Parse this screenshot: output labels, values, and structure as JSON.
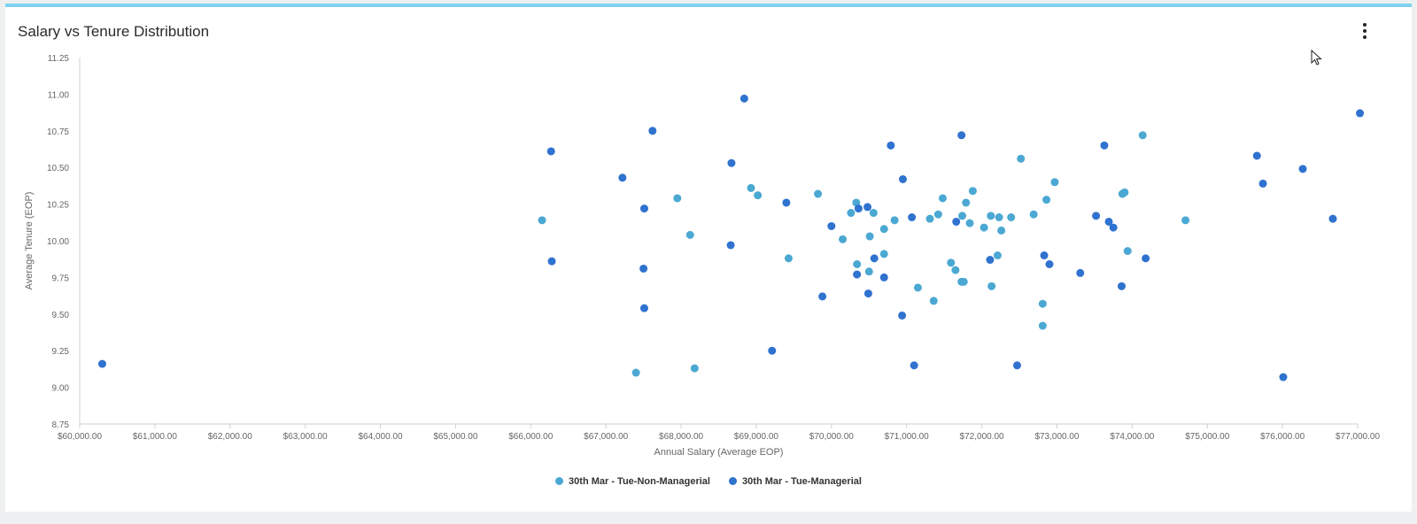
{
  "header": {
    "title": "Salary vs Tenure Distribution"
  },
  "colors": {
    "accent": "#7fd3ef",
    "series0": "#4ba8d3",
    "series1": "#2f72cf"
  },
  "chart_data": {
    "type": "scatter",
    "xlabel": "Annual Salary (Average EOP)",
    "ylabel": "Average Tenure (EOP)",
    "xlim": [
      60000,
      77000
    ],
    "ylim": [
      8.75,
      11.25
    ],
    "x_ticks": [
      "$60,000.00",
      "$61,000.00",
      "$62,000.00",
      "$63,000.00",
      "$64,000.00",
      "$65,000.00",
      "$66,000.00",
      "$67,000.00",
      "$68,000.00",
      "$69,000.00",
      "$70,000.00",
      "$71,000.00",
      "$72,000.00",
      "$73,000.00",
      "$74,000.00",
      "$75,000.00",
      "$76,000.00",
      "$77,000.00"
    ],
    "y_ticks": [
      "8.75",
      "9.00",
      "9.25",
      "9.50",
      "9.75",
      "10.00",
      "10.25",
      "10.50",
      "10.75",
      "11.00",
      "11.25"
    ],
    "grid": false,
    "legend": "bottom-center",
    "series": [
      {
        "name": "30th Mar - Tue-Non-Managerial",
        "color": "#4ba8d3",
        "points": [
          [
            66150,
            10.14
          ],
          [
            67400,
            9.1
          ],
          [
            67950,
            10.29
          ],
          [
            68120,
            10.04
          ],
          [
            68180,
            9.13
          ],
          [
            68930,
            10.36
          ],
          [
            69020,
            10.31
          ],
          [
            69430,
            9.88
          ],
          [
            69820,
            10.32
          ],
          [
            70150,
            10.01
          ],
          [
            70260,
            10.19
          ],
          [
            70330,
            10.26
          ],
          [
            70340,
            9.84
          ],
          [
            70500,
            9.79
          ],
          [
            70510,
            10.03
          ],
          [
            70560,
            10.19
          ],
          [
            70700,
            10.08
          ],
          [
            70700,
            9.91
          ],
          [
            70840,
            10.14
          ],
          [
            71150,
            9.68
          ],
          [
            71310,
            10.15
          ],
          [
            71360,
            9.59
          ],
          [
            71420,
            10.18
          ],
          [
            71480,
            10.29
          ],
          [
            71590,
            9.85
          ],
          [
            71650,
            9.8
          ],
          [
            71730,
            9.72
          ],
          [
            71760,
            9.72
          ],
          [
            71740,
            10.17
          ],
          [
            71790,
            10.26
          ],
          [
            71840,
            10.12
          ],
          [
            71880,
            10.34
          ],
          [
            72030,
            10.09
          ],
          [
            72120,
            10.17
          ],
          [
            72130,
            9.69
          ],
          [
            72210,
            9.9
          ],
          [
            72230,
            10.16
          ],
          [
            72260,
            10.07
          ],
          [
            72390,
            10.16
          ],
          [
            72520,
            10.56
          ],
          [
            72690,
            10.18
          ],
          [
            72810,
            9.57
          ],
          [
            72810,
            9.42
          ],
          [
            72860,
            10.28
          ],
          [
            72970,
            10.4
          ],
          [
            73870,
            10.32
          ],
          [
            73900,
            10.33
          ],
          [
            73940,
            9.93
          ],
          [
            74140,
            10.72
          ],
          [
            74710,
            10.14
          ]
        ]
      },
      {
        "name": "30th Mar - Tue-Managerial",
        "color": "#2f72cf",
        "points": [
          [
            60300,
            9.16
          ],
          [
            66270,
            10.61
          ],
          [
            66280,
            9.86
          ],
          [
            67220,
            10.43
          ],
          [
            67500,
            9.81
          ],
          [
            67510,
            10.22
          ],
          [
            67510,
            9.54
          ],
          [
            67620,
            10.75
          ],
          [
            68670,
            10.53
          ],
          [
            68660,
            9.97
          ],
          [
            68840,
            10.97
          ],
          [
            69210,
            9.25
          ],
          [
            69400,
            10.26
          ],
          [
            69880,
            9.62
          ],
          [
            70000,
            10.1
          ],
          [
            70340,
            9.77
          ],
          [
            70360,
            10.22
          ],
          [
            70480,
            10.23
          ],
          [
            70490,
            9.64
          ],
          [
            70570,
            9.88
          ],
          [
            70700,
            9.75
          ],
          [
            70790,
            10.65
          ],
          [
            70950,
            10.42
          ],
          [
            70940,
            9.49
          ],
          [
            71070,
            10.16
          ],
          [
            71100,
            9.15
          ],
          [
            71660,
            10.13
          ],
          [
            71730,
            10.72
          ],
          [
            72110,
            9.87
          ],
          [
            72470,
            9.15
          ],
          [
            72830,
            9.9
          ],
          [
            72900,
            9.84
          ],
          [
            73310,
            9.78
          ],
          [
            73520,
            10.17
          ],
          [
            73630,
            10.65
          ],
          [
            73690,
            10.13
          ],
          [
            73750,
            10.09
          ],
          [
            73860,
            9.69
          ],
          [
            74180,
            9.88
          ],
          [
            75660,
            10.58
          ],
          [
            75740,
            10.39
          ],
          [
            76010,
            9.07
          ],
          [
            76270,
            10.49
          ],
          [
            76670,
            10.15
          ],
          [
            77030,
            10.87
          ]
        ]
      }
    ]
  }
}
